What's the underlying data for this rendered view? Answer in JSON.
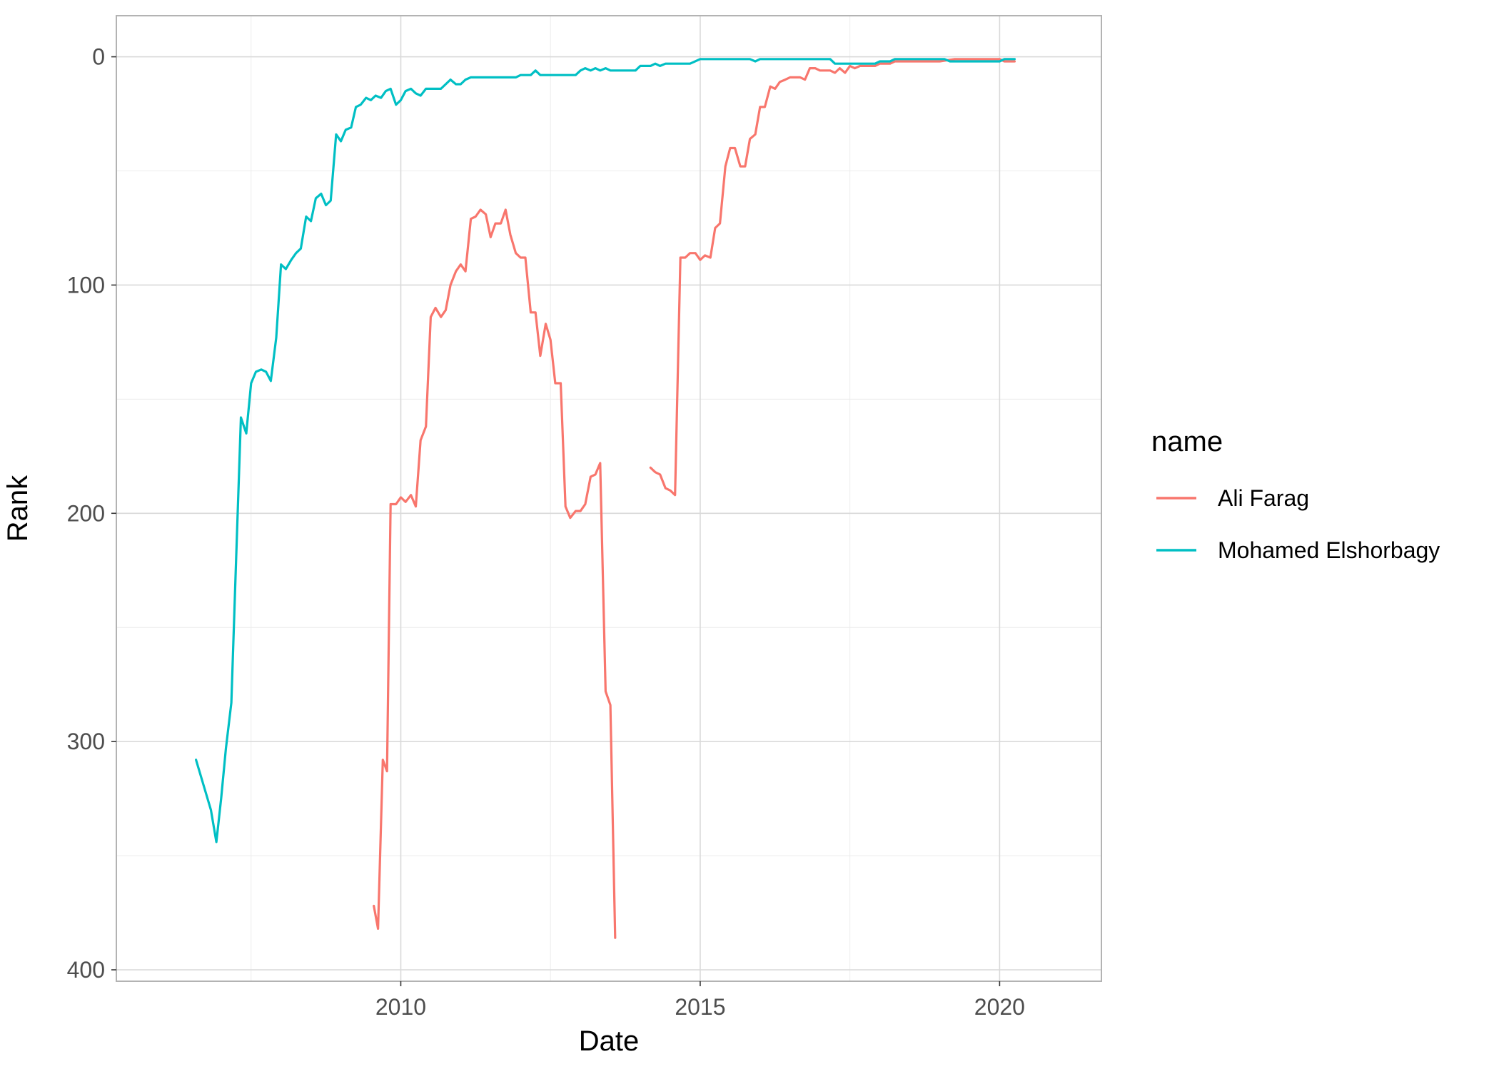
{
  "chart_data": {
    "type": "line",
    "xlabel": "Date",
    "ylabel": "Rank",
    "x_range": [
      2005.25,
      2021.7
    ],
    "y_range": [
      405,
      -18
    ],
    "y_reversed": true,
    "x_ticks": [
      2010,
      2015,
      2020
    ],
    "x_minor_ticks": [
      2007.5,
      2012.5,
      2017.5
    ],
    "y_ticks": [
      0,
      100,
      200,
      300,
      400
    ],
    "y_minor_ticks": [
      50,
      150,
      250,
      350
    ],
    "grid": true,
    "legend": {
      "title": "name",
      "position": "right"
    },
    "series": [
      {
        "name": "Ali Farag",
        "color": "#F8766D",
        "segments": [
          [
            [
              2009.55,
              372
            ],
            [
              2009.62,
              382
            ],
            [
              2009.7,
              308
            ],
            [
              2009.77,
              313
            ],
            [
              2009.83,
              196
            ],
            [
              2009.92,
              196
            ],
            [
              2010.0,
              193
            ],
            [
              2010.08,
              195
            ],
            [
              2010.17,
              192
            ],
            [
              2010.25,
              197
            ],
            [
              2010.33,
              168
            ],
            [
              2010.42,
              162
            ],
            [
              2010.5,
              114
            ],
            [
              2010.58,
              110
            ],
            [
              2010.67,
              114
            ],
            [
              2010.75,
              111
            ],
            [
              2010.83,
              100
            ],
            [
              2010.92,
              94
            ],
            [
              2011.0,
              91
            ],
            [
              2011.08,
              94
            ],
            [
              2011.17,
              71
            ],
            [
              2011.25,
              70
            ],
            [
              2011.33,
              67
            ],
            [
              2011.42,
              69
            ],
            [
              2011.5,
              79
            ],
            [
              2011.58,
              73
            ],
            [
              2011.67,
              73
            ],
            [
              2011.75,
              67
            ],
            [
              2011.83,
              78
            ],
            [
              2011.92,
              86
            ],
            [
              2012.0,
              88
            ],
            [
              2012.08,
              88
            ],
            [
              2012.17,
              112
            ],
            [
              2012.25,
              112
            ],
            [
              2012.33,
              131
            ],
            [
              2012.42,
              117
            ],
            [
              2012.5,
              124
            ],
            [
              2012.58,
              143
            ],
            [
              2012.67,
              143
            ],
            [
              2012.75,
              197
            ],
            [
              2012.83,
              202
            ],
            [
              2012.92,
              199
            ],
            [
              2013.0,
              199
            ],
            [
              2013.08,
              196
            ],
            [
              2013.17,
              184
            ],
            [
              2013.25,
              183
            ],
            [
              2013.33,
              178
            ],
            [
              2013.42,
              278
            ],
            [
              2013.5,
              284
            ],
            [
              2013.58,
              386
            ]
          ],
          [
            [
              2014.17,
              180
            ],
            [
              2014.25,
              182
            ],
            [
              2014.33,
              183
            ],
            [
              2014.42,
              189
            ],
            [
              2014.5,
              190
            ],
            [
              2014.58,
              192
            ],
            [
              2014.67,
              88
            ],
            [
              2014.75,
              88
            ],
            [
              2014.83,
              86
            ],
            [
              2014.92,
              86
            ],
            [
              2015.0,
              89
            ],
            [
              2015.08,
              87
            ],
            [
              2015.17,
              88
            ],
            [
              2015.25,
              75
            ],
            [
              2015.33,
              73
            ],
            [
              2015.42,
              48
            ],
            [
              2015.5,
              40
            ],
            [
              2015.58,
              40
            ],
            [
              2015.67,
              48
            ],
            [
              2015.75,
              48
            ],
            [
              2015.83,
              36
            ],
            [
              2015.92,
              34
            ],
            [
              2016.0,
              22
            ],
            [
              2016.08,
              22
            ],
            [
              2016.17,
              13
            ],
            [
              2016.25,
              14
            ],
            [
              2016.33,
              11
            ],
            [
              2016.42,
              10
            ],
            [
              2016.5,
              9
            ],
            [
              2016.58,
              9
            ],
            [
              2016.67,
              9
            ],
            [
              2016.75,
              10
            ],
            [
              2016.83,
              5
            ],
            [
              2016.92,
              5
            ],
            [
              2017.0,
              6
            ],
            [
              2017.08,
              6
            ],
            [
              2017.17,
              6
            ],
            [
              2017.25,
              7
            ],
            [
              2017.33,
              5
            ],
            [
              2017.42,
              7
            ],
            [
              2017.5,
              4
            ],
            [
              2017.58,
              5
            ],
            [
              2017.67,
              4
            ],
            [
              2017.75,
              4
            ],
            [
              2017.83,
              4
            ],
            [
              2017.92,
              4
            ],
            [
              2018.0,
              3
            ],
            [
              2018.08,
              3
            ],
            [
              2018.17,
              3
            ],
            [
              2018.25,
              2
            ],
            [
              2018.5,
              2
            ],
            [
              2018.75,
              2
            ],
            [
              2019.0,
              2
            ],
            [
              2019.25,
              1
            ],
            [
              2019.5,
              1
            ],
            [
              2019.75,
              1
            ],
            [
              2020.0,
              1
            ],
            [
              2020.08,
              2
            ],
            [
              2020.17,
              2
            ],
            [
              2020.25,
              2
            ]
          ]
        ]
      },
      {
        "name": "Mohamed Elshorbagy",
        "color": "#00BFC4",
        "segments": [
          [
            [
              2006.58,
              308
            ],
            [
              2006.83,
              330
            ],
            [
              2006.92,
              344
            ],
            [
              2007.0,
              325
            ],
            [
              2007.08,
              303
            ],
            [
              2007.17,
              283
            ],
            [
              2007.25,
              220
            ],
            [
              2007.33,
              158
            ],
            [
              2007.42,
              165
            ],
            [
              2007.5,
              143
            ],
            [
              2007.58,
              138
            ],
            [
              2007.67,
              137
            ],
            [
              2007.75,
              138
            ],
            [
              2007.83,
              142
            ],
            [
              2007.92,
              123
            ],
            [
              2008.0,
              91
            ],
            [
              2008.08,
              93
            ],
            [
              2008.17,
              89
            ],
            [
              2008.25,
              86
            ],
            [
              2008.33,
              84
            ],
            [
              2008.42,
              70
            ],
            [
              2008.5,
              72
            ],
            [
              2008.58,
              62
            ],
            [
              2008.67,
              60
            ],
            [
              2008.75,
              65
            ],
            [
              2008.83,
              63
            ],
            [
              2008.92,
              34
            ],
            [
              2009.0,
              37
            ],
            [
              2009.08,
              32
            ],
            [
              2009.17,
              31
            ],
            [
              2009.25,
              22
            ],
            [
              2009.33,
              21
            ],
            [
              2009.42,
              18
            ],
            [
              2009.5,
              19
            ],
            [
              2009.58,
              17
            ],
            [
              2009.67,
              18
            ],
            [
              2009.75,
              15
            ],
            [
              2009.83,
              14
            ],
            [
              2009.92,
              21
            ],
            [
              2010.0,
              19
            ],
            [
              2010.08,
              15
            ],
            [
              2010.17,
              14
            ],
            [
              2010.25,
              16
            ],
            [
              2010.33,
              17
            ],
            [
              2010.42,
              14
            ],
            [
              2010.5,
              14
            ],
            [
              2010.58,
              14
            ],
            [
              2010.67,
              14
            ],
            [
              2010.75,
              12
            ],
            [
              2010.83,
              10
            ],
            [
              2010.92,
              12
            ],
            [
              2011.0,
              12
            ],
            [
              2011.08,
              10
            ],
            [
              2011.17,
              9
            ],
            [
              2011.5,
              9
            ],
            [
              2011.75,
              9
            ],
            [
              2011.92,
              9
            ],
            [
              2012.0,
              8
            ],
            [
              2012.17,
              8
            ],
            [
              2012.25,
              6
            ],
            [
              2012.33,
              8
            ],
            [
              2012.5,
              8
            ],
            [
              2012.75,
              8
            ],
            [
              2012.92,
              8
            ],
            [
              2013.0,
              6
            ],
            [
              2013.08,
              5
            ],
            [
              2013.17,
              6
            ],
            [
              2013.25,
              5
            ],
            [
              2013.33,
              6
            ],
            [
              2013.42,
              5
            ],
            [
              2013.5,
              6
            ],
            [
              2013.75,
              6
            ],
            [
              2013.92,
              6
            ],
            [
              2014.0,
              4
            ],
            [
              2014.17,
              4
            ],
            [
              2014.25,
              3
            ],
            [
              2014.33,
              4
            ],
            [
              2014.42,
              3
            ],
            [
              2014.67,
              3
            ],
            [
              2014.83,
              3
            ],
            [
              2015.0,
              1
            ],
            [
              2015.5,
              1
            ],
            [
              2015.83,
              1
            ],
            [
              2015.92,
              2
            ],
            [
              2016.0,
              1
            ],
            [
              2016.5,
              1
            ],
            [
              2017.0,
              1
            ],
            [
              2017.17,
              1
            ],
            [
              2017.25,
              3
            ],
            [
              2017.5,
              3
            ],
            [
              2017.75,
              3
            ],
            [
              2017.92,
              3
            ],
            [
              2018.0,
              2
            ],
            [
              2018.17,
              2
            ],
            [
              2018.25,
              1
            ],
            [
              2018.5,
              1
            ],
            [
              2018.83,
              1
            ],
            [
              2019.0,
              1
            ],
            [
              2019.08,
              1
            ],
            [
              2019.17,
              2
            ],
            [
              2019.5,
              2
            ],
            [
              2019.75,
              2
            ],
            [
              2019.92,
              2
            ],
            [
              2020.0,
              2
            ],
            [
              2020.08,
              1
            ],
            [
              2020.25,
              1
            ]
          ]
        ]
      }
    ]
  }
}
